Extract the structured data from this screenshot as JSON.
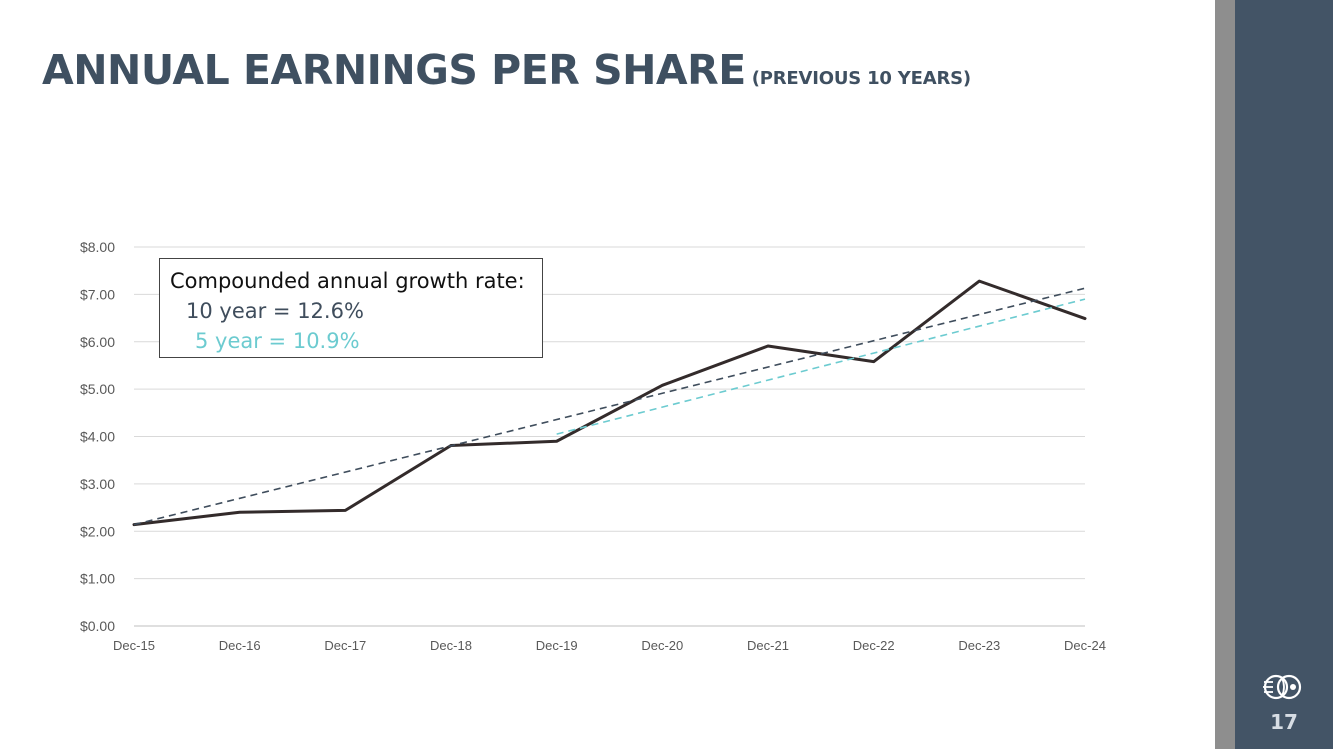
{
  "slide": {
    "title": "ANNUAL EARNINGS PER SHARE",
    "subtitle": "(PREVIOUS 10 YEARS)",
    "page_number": "17",
    "logo_icon": "company-logo-icon"
  },
  "annotation": {
    "heading": "Compounded annual growth rate:",
    "ten_year": "10 year = 12.6%",
    "five_year": "5 year = 10.9%"
  },
  "colors": {
    "title": "#3f5061",
    "sidebar": "#435466",
    "sidebar_accent": "#8e8e8e",
    "eps_line": "#332b2b",
    "trend_10y": "#3f4d5c",
    "trend_5y": "#6ccbd0",
    "grid": "#d9d9d9"
  },
  "chart_data": {
    "type": "line",
    "title": "ANNUAL EARNINGS PER SHARE (PREVIOUS 10 YEARS)",
    "xlabel": "",
    "ylabel": "",
    "categories": [
      "Dec-15",
      "Dec-16",
      "Dec-17",
      "Dec-18",
      "Dec-19",
      "Dec-20",
      "Dec-21",
      "Dec-22",
      "Dec-23",
      "Dec-24"
    ],
    "y_ticks": [
      "$0.00",
      "$1.00",
      "$2.00",
      "$3.00",
      "$4.00",
      "$5.00",
      "$6.00",
      "$7.00",
      "$8.00"
    ],
    "ylim": [
      0,
      8
    ],
    "grid": true,
    "legend": "none",
    "series": [
      {
        "name": "Annual EPS",
        "style": "solid",
        "values": [
          2.14,
          2.4,
          2.44,
          3.81,
          3.9,
          5.08,
          5.91,
          5.58,
          7.28,
          6.49
        ]
      },
      {
        "name": "10 year trend",
        "style": "dashed",
        "start_index": 0,
        "end_index": 9,
        "start_value": 2.14,
        "end_value": 7.13
      },
      {
        "name": "5 year trend",
        "style": "dashed",
        "start_index": 4,
        "end_index": 9,
        "start_value": 4.05,
        "end_value": 6.9
      }
    ]
  }
}
